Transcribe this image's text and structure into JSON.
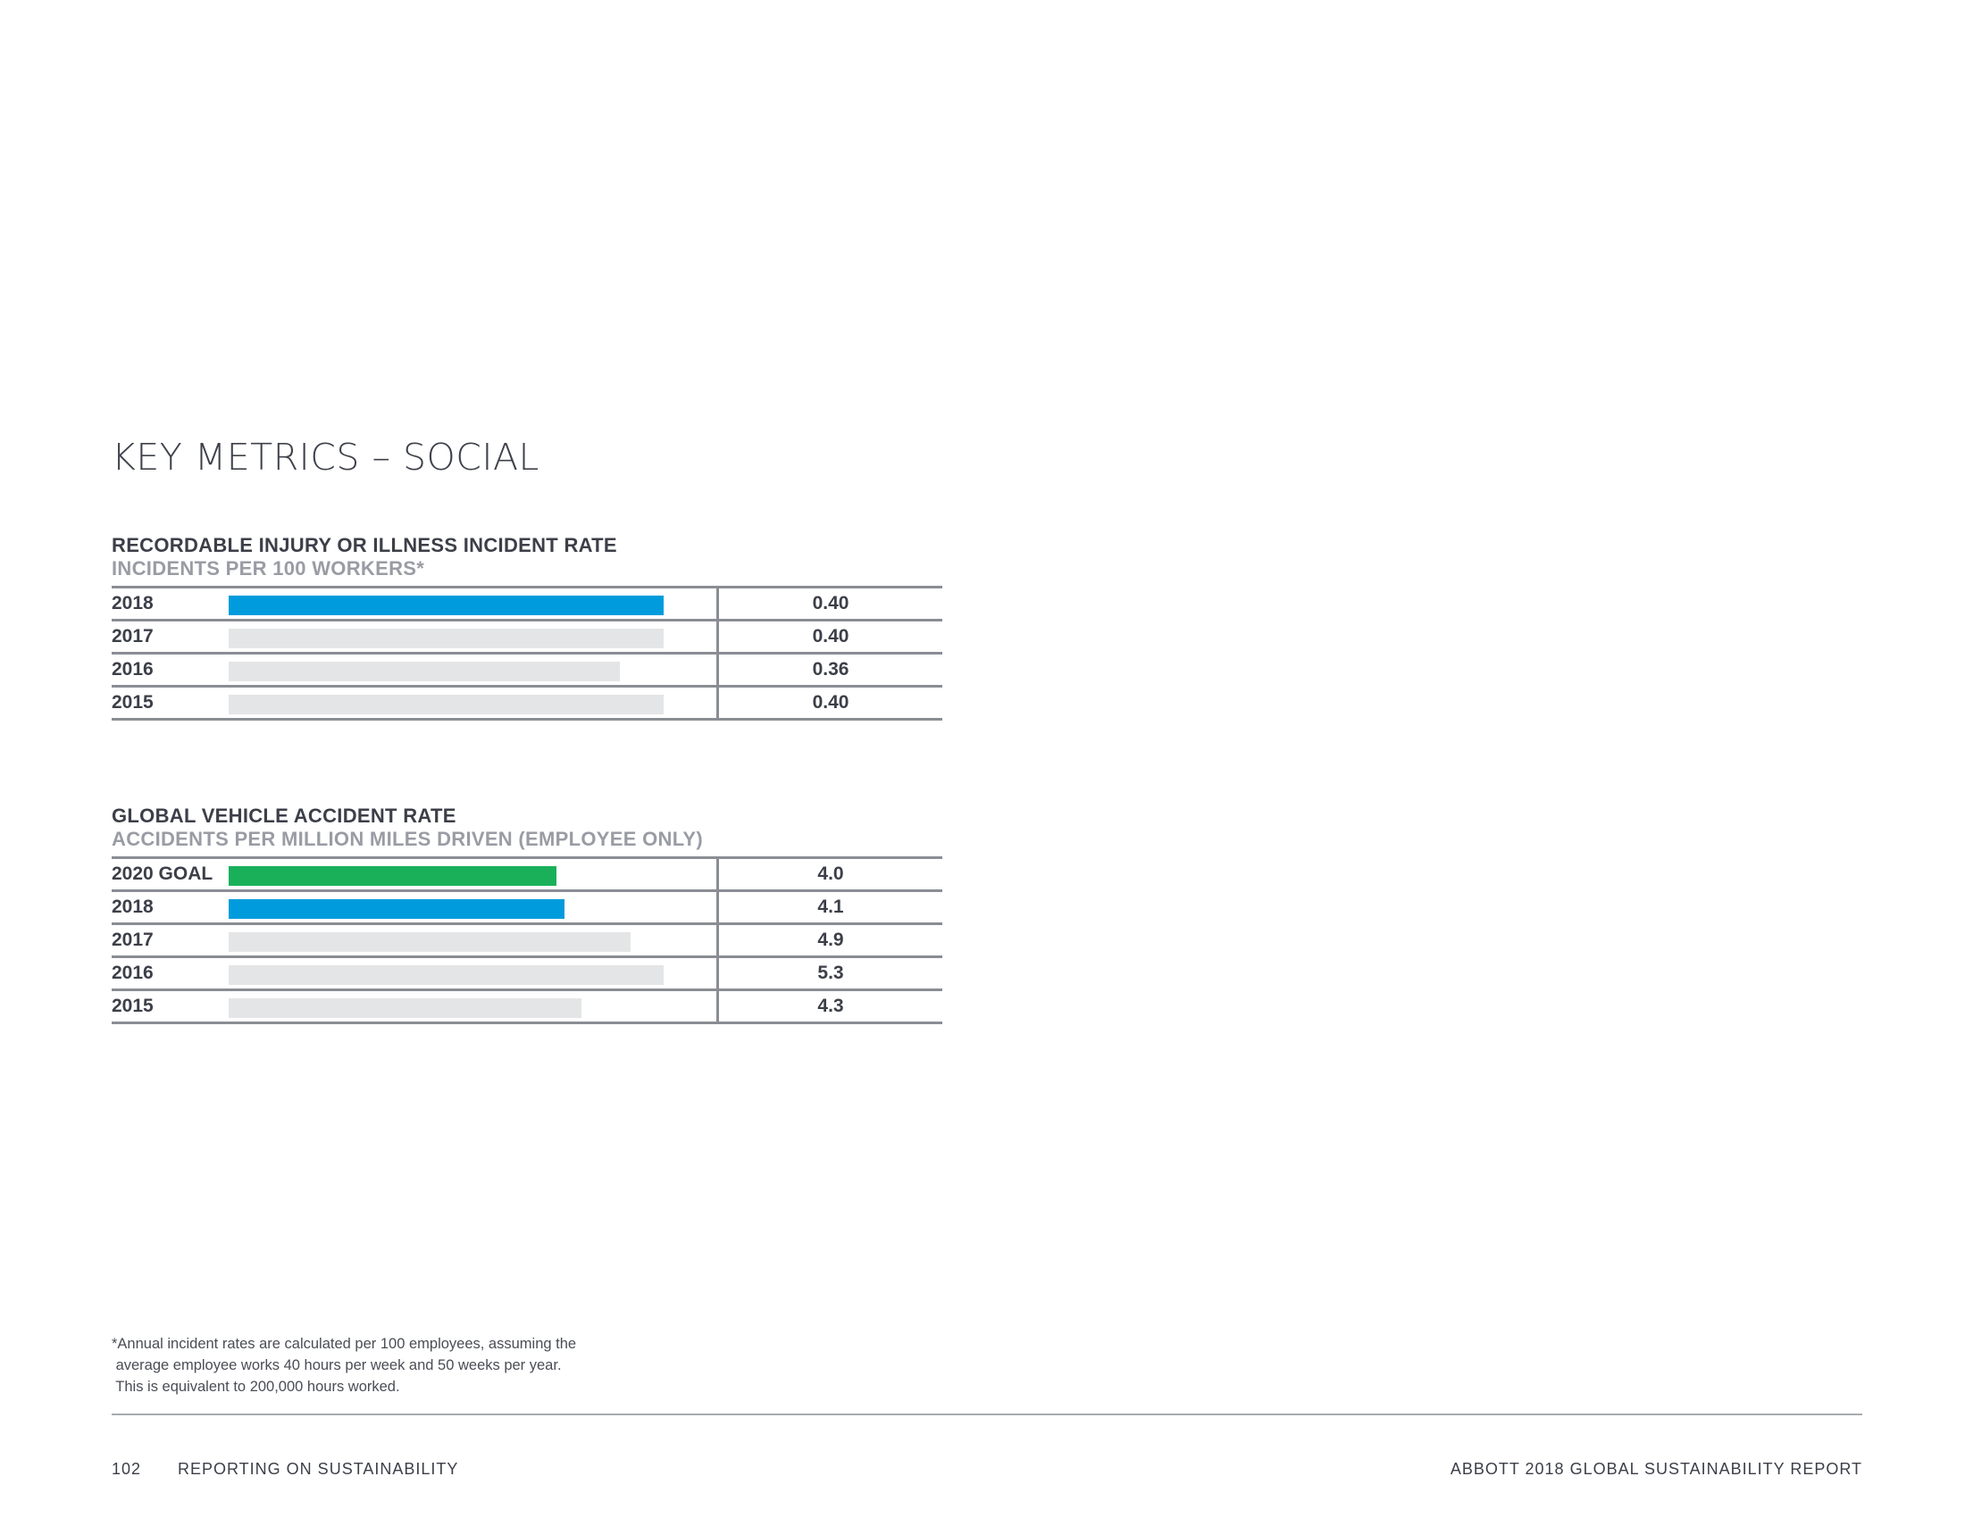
{
  "page": {
    "title": "KEY METRICS – SOCIAL",
    "footnote": [
      "*Annual incident rates are calculated per 100 employees, assuming the",
      " average employee works 40 hours per week and 50 weeks per year.",
      " This is equivalent to 200,000 hours worked."
    ],
    "footer": {
      "page_number": "102",
      "section": "REPORTING ON SUSTAINABILITY",
      "report": "ABBOTT 2018 GLOBAL SUSTAINABILITY REPORT"
    }
  },
  "colors": {
    "current": "#009bdc",
    "goal": "#1ab05a",
    "past": "#e4e5e6"
  },
  "chart_data": [
    {
      "type": "bar",
      "orientation": "horizontal",
      "title": "RECORDABLE INJURY OR ILLNESS INCIDENT RATE",
      "subtitle": "INCIDENTS PER 100 WORKERS*",
      "xlim": [
        0,
        0.46
      ],
      "grid": false,
      "categories": [
        "2018",
        "2017",
        "2016",
        "2015"
      ],
      "values": [
        0.4,
        0.4,
        0.36,
        0.4
      ],
      "value_labels": [
        "0.40",
        "0.40",
        "0.36",
        "0.40"
      ],
      "bar_colors": [
        "current",
        "past",
        "past",
        "past"
      ]
    },
    {
      "type": "bar",
      "orientation": "horizontal",
      "title": "GLOBAL VEHICLE ACCIDENT RATE",
      "subtitle": "ACCIDENTS PER MILLION MILES DRIVEN (EMPLOYEE ONLY)",
      "xlim": [
        0,
        6.1
      ],
      "grid": false,
      "categories": [
        "2020 GOAL",
        "2018",
        "2017",
        "2016",
        "2015"
      ],
      "values": [
        4.0,
        4.1,
        4.9,
        5.3,
        4.3
      ],
      "value_labels": [
        "4.0",
        "4.1",
        "4.9",
        "5.3",
        "4.3"
      ],
      "bar_colors": [
        "goal",
        "current",
        "past",
        "past",
        "past"
      ]
    }
  ]
}
